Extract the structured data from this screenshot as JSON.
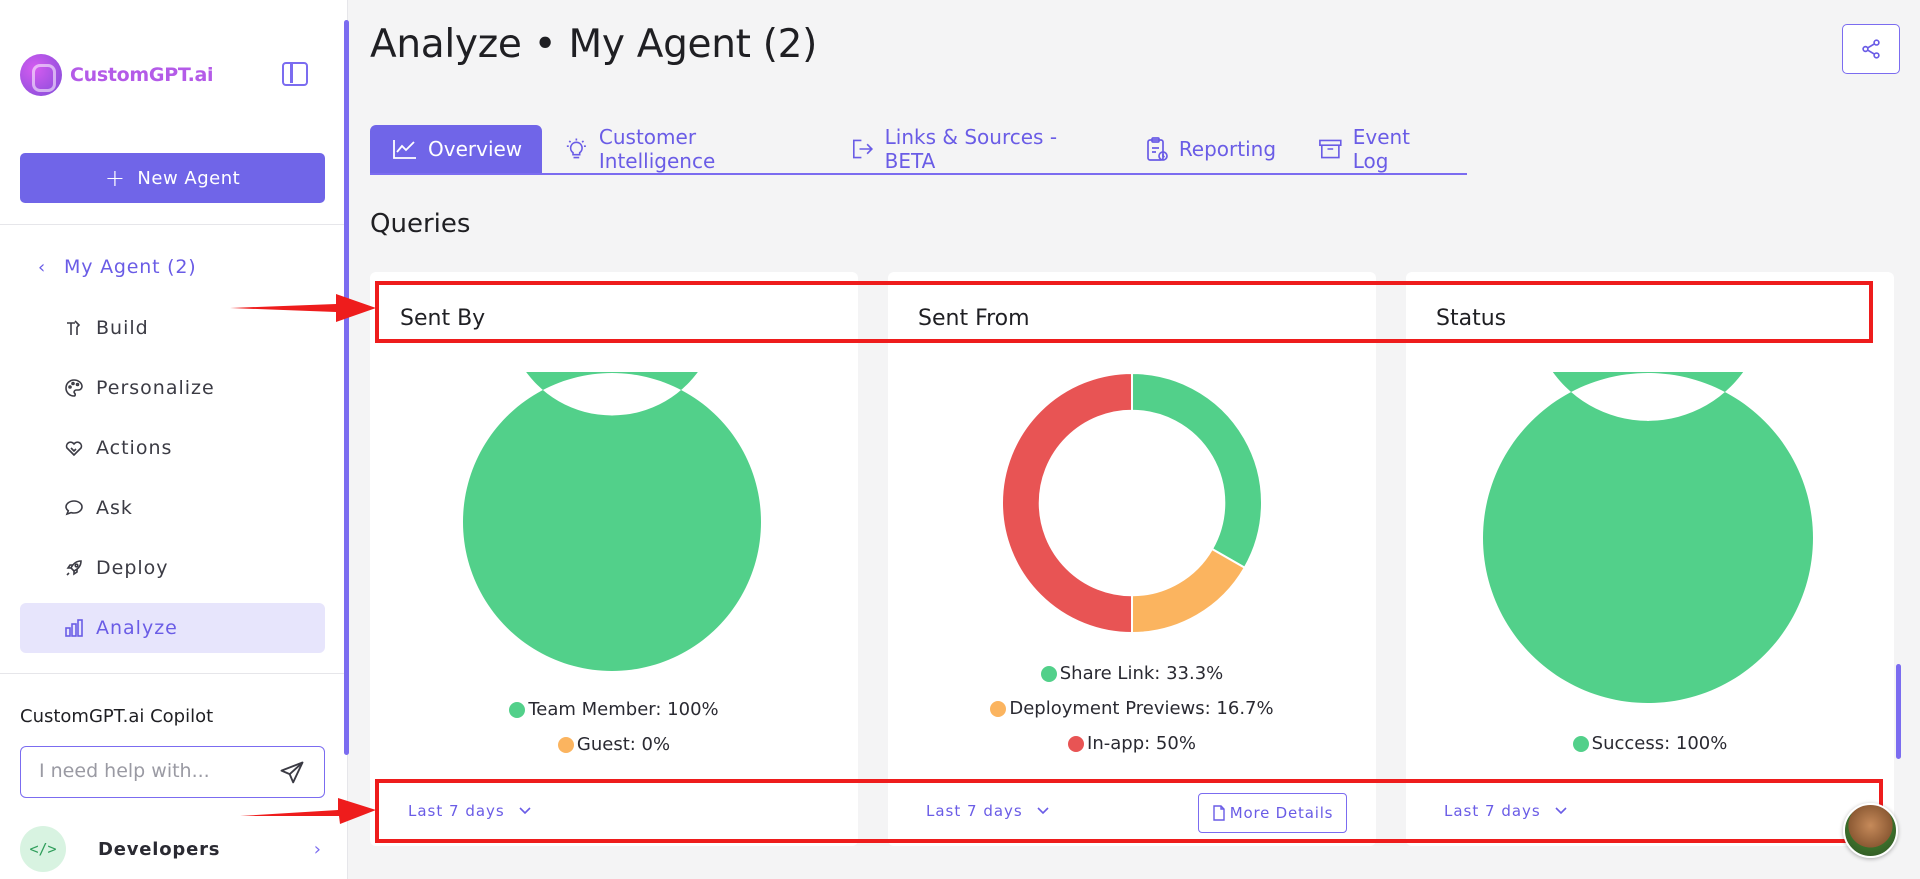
{
  "sidebar": {
    "logo_text": "CustomGPT.ai",
    "new_agent_label": "New Agent",
    "back_label": "My Agent (2)",
    "nav_items": [
      {
        "label": "Build",
        "icon": "build-icon"
      },
      {
        "label": "Personalize",
        "icon": "palette-icon"
      },
      {
        "label": "Actions",
        "icon": "handshake-icon"
      },
      {
        "label": "Ask",
        "icon": "chat-icon"
      },
      {
        "label": "Deploy",
        "icon": "rocket-icon"
      },
      {
        "label": "Analyze",
        "icon": "bar-chart-icon",
        "active": true
      }
    ],
    "copilot_title": "CustomGPT.ai Copilot",
    "copilot_placeholder": "I need help with...",
    "developers_label": "Developers",
    "developers_icon_glyph": "</>"
  },
  "header": {
    "title": "Analyze • My Agent (2)"
  },
  "tabs": [
    {
      "label": "Overview",
      "icon": "line-chart-icon",
      "active": true
    },
    {
      "label": "Customer Intelligence",
      "icon": "lightbulb-icon"
    },
    {
      "label": "Links & Sources - BETA",
      "icon": "exit-icon"
    },
    {
      "label": "Reporting",
      "icon": "clipboard-icon"
    },
    {
      "label": "Event Log",
      "icon": "archive-icon"
    }
  ],
  "section_title": "Queries",
  "cards": [
    {
      "title": "Sent By",
      "legend": [
        "Team Member: 100%",
        "Guest: 0%"
      ],
      "range_label": "Last 7 days"
    },
    {
      "title": "Sent From",
      "legend": [
        "Share Link: 33.3%",
        "Deployment Previews: 16.7%",
        "In-app: 50%"
      ],
      "range_label": "Last 7 days",
      "more_label": "More Details"
    },
    {
      "title": "Status",
      "legend": [
        "Success: 100%"
      ],
      "range_label": "Last 7 days"
    }
  ],
  "colors": {
    "accent": "#7065e8",
    "green": "#52d08a",
    "orange": "#fbb45f",
    "red": "#e85454",
    "annotation_red": "#ee1c1c"
  },
  "chart_data": [
    {
      "type": "pie",
      "title": "Sent By",
      "categories": [
        "Team Member",
        "Guest"
      ],
      "values": [
        100,
        0
      ],
      "colors": [
        "#52d08a",
        "#fbb45f"
      ]
    },
    {
      "type": "pie",
      "title": "Sent From",
      "categories": [
        "Share Link",
        "Deployment Previews",
        "In-app"
      ],
      "values": [
        33.3,
        16.7,
        50
      ],
      "colors": [
        "#52d08a",
        "#fbb45f",
        "#e85454"
      ]
    },
    {
      "type": "pie",
      "title": "Status",
      "categories": [
        "Success"
      ],
      "values": [
        100
      ],
      "colors": [
        "#52d08a"
      ]
    }
  ]
}
